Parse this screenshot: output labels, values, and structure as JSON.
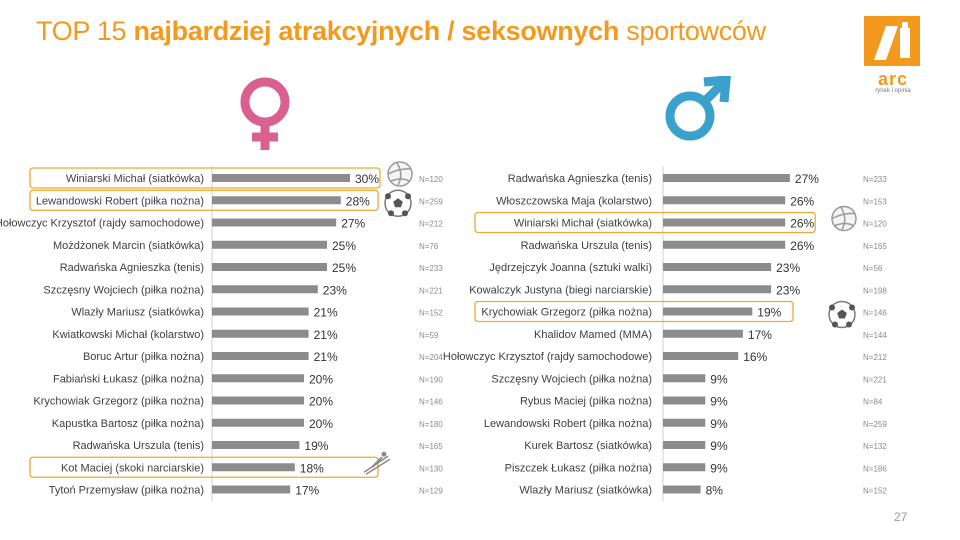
{
  "title": {
    "prefix": "TOP 15 ",
    "bold": "najbardziej atrakcyjnych / seksownych",
    "suffix": " sportowców"
  },
  "logo": {
    "text": "arc",
    "subtitle": "rynek i opinia"
  },
  "page_number": "27",
  "colors": {
    "accent": "#f39a1e",
    "bar": "#8c8c8c",
    "female_symbol": "#d9608f",
    "male_symbol": "#3aa0cc",
    "highlight_border": "#f0a830"
  },
  "icons": {
    "female": "female-symbol-icon",
    "male": "male-symbol-icon",
    "volleyball": "volleyball-icon",
    "football": "soccer-ball-icon",
    "ski_jump": "ski-jumper-icon"
  },
  "chart_data": [
    {
      "type": "bar",
      "orientation": "horizontal",
      "group": "female",
      "categories": [
        "Winiarski Michał (siatkówka)",
        "Lewandowski Robert (piłka nożna)",
        "Hołowczyc Krzysztof (rajdy samochodowe)",
        "Możdżonek Marcin (siatkówka)",
        "Radwańska Agnieszka (tenis)",
        "Szczęsny Wojciech (piłka nożna)",
        "Wlazły Mariusz (siatkówka)",
        "Kwiatkowski Michał (kolarstwo)",
        "Boruc Artur (piłka nożna)",
        "Fabiański Łukasz (piłka nożna)",
        "Krychowiak Grzegorz (piłka nożna)",
        "Kapustka Bartosz (piłka nożna)",
        "Radwańska Urszula (tenis)",
        "Kot Maciej (skoki narciarskie)",
        "Tytoń Przemysław (piłka nożna)"
      ],
      "values": [
        30,
        28,
        27,
        25,
        25,
        23,
        21,
        21,
        21,
        20,
        20,
        20,
        19,
        18,
        17
      ],
      "value_labels": [
        "30%",
        "28%",
        "27%",
        "25%",
        "25%",
        "23%",
        "21%",
        "21%",
        "21%",
        "20%",
        "20%",
        "20%",
        "19%",
        "18%",
        "17%"
      ],
      "n_labels": [
        "N=120",
        "N=259",
        "N=212",
        "N=76",
        "N=233",
        "N=221",
        "N=152",
        "N=59",
        "N=204",
        "N=190",
        "N=146",
        "N=180",
        "N=165",
        "N=130",
        "N=129"
      ],
      "highlighted": [
        0,
        1,
        13
      ],
      "row_icons": {
        "0": "volleyball-icon",
        "1": "soccer-ball-icon",
        "13": "ski-jumper-icon"
      },
      "xlim": [
        0,
        30
      ]
    },
    {
      "type": "bar",
      "orientation": "horizontal",
      "group": "male",
      "categories": [
        "Radwańska Agnieszka (tenis)",
        "Włoszczowska Maja (kolarstwo)",
        "Winiarski Michał (siatkówka)",
        "Radwańska Urszula (tenis)",
        "Jędrzejczyk Joanna (sztuki walki)",
        "Kowalczyk Justyna (biegi narciarskie)",
        "Krychowiak Grzegorz (piłka nożna)",
        "Khalidov Mamed (MMA)",
        "Hołowczyc Krzysztof (rajdy samochodowe)",
        "Szczęsny Wojciech (piłka nożna)",
        "Rybus Maciej (piłka nożna)",
        "Lewandowski Robert (piłka nożna)",
        "Kurek Bartosz (siatkówka)",
        "Piszczek Łukasz  (piłka nożna)",
        "Wlazły Mariusz (siatkówka)"
      ],
      "values": [
        27,
        26,
        26,
        26,
        23,
        23,
        19,
        17,
        16,
        9,
        9,
        9,
        9,
        9,
        8
      ],
      "value_labels": [
        "27%",
        "26%",
        "26%",
        "26%",
        "23%",
        "23%",
        "19%",
        "17%",
        "16%",
        "9%",
        "9%",
        "9%",
        "9%",
        "9%",
        "8%"
      ],
      "n_labels": [
        "N=233",
        "N=153",
        "N=120",
        "N=165",
        "N=56",
        "N=198",
        "N=146",
        "N=144",
        "N=212",
        "N=221",
        "N=84",
        "N=259",
        "N=132",
        "N=186",
        "N=152"
      ],
      "highlighted": [
        2,
        6
      ],
      "row_icons": {
        "2": "volleyball-icon",
        "6": "soccer-ball-icon"
      },
      "xlim": [
        0,
        30
      ]
    }
  ]
}
